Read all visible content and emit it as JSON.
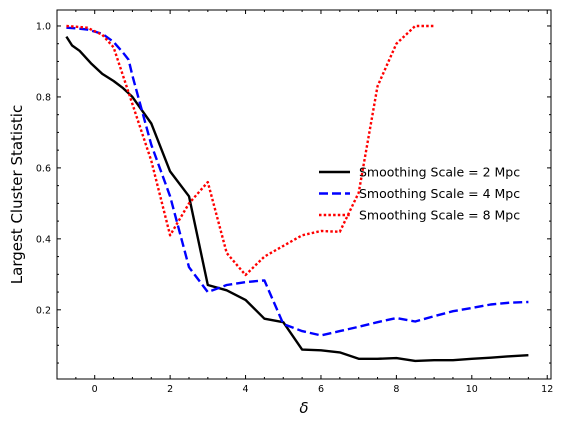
{
  "chart_data": {
    "type": "line",
    "xlabel": "δ",
    "ylabel": "Largest Cluster Statistic",
    "xlim": [
      -1.0,
      12.1
    ],
    "ylim": [
      0.005,
      1.045
    ],
    "xticks": [
      0,
      2,
      4,
      6,
      8,
      10,
      12
    ],
    "yticks": [
      0.2,
      0.4,
      0.6,
      0.8,
      1.0
    ],
    "xtick_labels": [
      "0",
      "2",
      "4",
      "6",
      "8",
      "10",
      "12"
    ],
    "ytick_labels": [
      "0.2",
      "0.4",
      "0.6",
      "0.8",
      "1.0"
    ],
    "grid": false,
    "legend_position": "center-right",
    "series": [
      {
        "name": "Smoothing Scale = 2 Mpc",
        "color": "#000000",
        "style": "solid",
        "x": [
          -0.75,
          -0.6,
          -0.4,
          -0.1,
          0.2,
          0.5,
          0.75,
          1.0,
          1.5,
          2.0,
          2.5,
          3.0,
          3.5,
          4.0,
          4.5,
          5.0,
          5.5,
          6.0,
          6.5,
          7.0,
          7.5,
          8.0,
          8.5,
          9.0,
          9.5,
          10.0,
          10.5,
          11.0,
          11.5
        ],
        "y": [
          0.97,
          0.945,
          0.93,
          0.895,
          0.865,
          0.845,
          0.825,
          0.8,
          0.725,
          0.59,
          0.52,
          0.27,
          0.255,
          0.228,
          0.175,
          0.165,
          0.088,
          0.086,
          0.08,
          0.062,
          0.062,
          0.064,
          0.056,
          0.058,
          0.058,
          0.062,
          0.065,
          0.069,
          0.072
        ]
      },
      {
        "name": "Smoothing Scale = 4 Mpc",
        "color": "#0000ff",
        "style": "dashed",
        "x": [
          -0.75,
          -0.5,
          -0.2,
          0.2,
          0.5,
          0.75,
          0.9,
          1.0,
          1.5,
          2.0,
          2.5,
          3.0,
          3.5,
          4.0,
          4.5,
          5.0,
          5.5,
          6.0,
          6.5,
          7.0,
          7.5,
          8.0,
          8.5,
          9.0,
          9.5,
          10.0,
          10.5,
          11.0,
          11.5
        ],
        "y": [
          0.995,
          0.993,
          0.99,
          0.978,
          0.955,
          0.925,
          0.905,
          0.86,
          0.665,
          0.52,
          0.32,
          0.25,
          0.27,
          0.278,
          0.283,
          0.16,
          0.14,
          0.128,
          0.14,
          0.152,
          0.165,
          0.177,
          0.167,
          0.182,
          0.196,
          0.205,
          0.215,
          0.22,
          0.222
        ]
      },
      {
        "name": "Smoothing Scale = 8 Mpc",
        "color": "#ff0000",
        "style": "dotted",
        "x": [
          -0.75,
          -0.5,
          -0.2,
          0.2,
          0.5,
          1.0,
          1.5,
          2.0,
          2.5,
          3.0,
          3.5,
          4.0,
          4.5,
          5.0,
          5.5,
          6.0,
          6.5,
          7.0,
          7.5,
          8.0,
          8.5,
          9.0
        ],
        "y": [
          1.0,
          0.998,
          0.995,
          0.975,
          0.94,
          0.78,
          0.62,
          0.41,
          0.5,
          0.56,
          0.36,
          0.298,
          0.35,
          0.38,
          0.41,
          0.422,
          0.42,
          0.53,
          0.83,
          0.95,
          1.0,
          1.0
        ]
      }
    ]
  }
}
